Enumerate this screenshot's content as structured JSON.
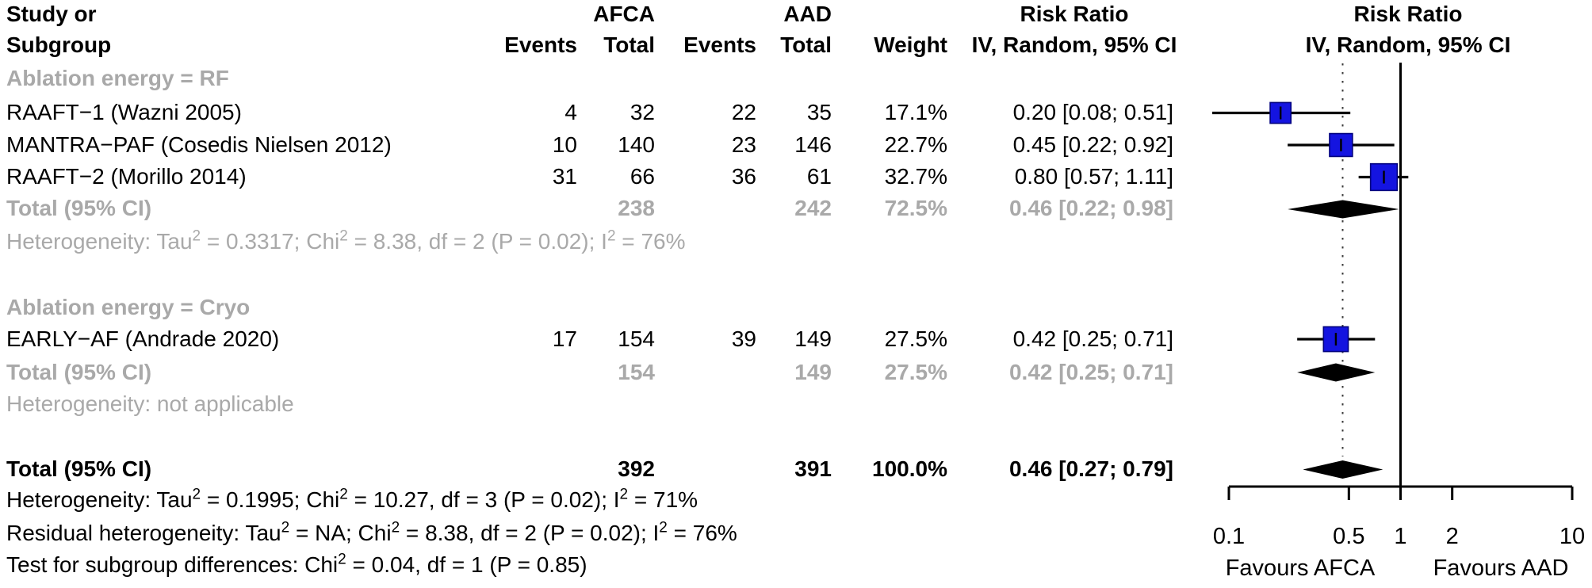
{
  "header": {
    "study_line1": "Study or",
    "study_line2": "Subgroup",
    "group1": "AFCA",
    "group2": "AAD",
    "events1": "Events",
    "total1": "Total",
    "events2": "Events",
    "total2": "Total",
    "weight": "Weight",
    "rr_col_line1": "Risk Ratio",
    "rr_col_line2": "IV, Random, 95% CI",
    "plot_col_line1": "Risk Ratio",
    "plot_col_line2": "IV, Random, 95% CI"
  },
  "sections": {
    "rf_label": "Ablation energy = RF",
    "cryo_label": "Ablation energy = Cryo"
  },
  "rows": {
    "raaft1": {
      "label": "RAAFT−1 (Wazni 2005)",
      "e1": "4",
      "t1": "32",
      "e2": "22",
      "t2": "35",
      "weight": "17.1%",
      "rr": "0.20 [0.08; 0.51]"
    },
    "mantra": {
      "label": "MANTRA−PAF (Cosedis Nielsen 2012)",
      "e1": "10",
      "t1": "140",
      "e2": "23",
      "t2": "146",
      "weight": "22.7%",
      "rr": "0.45 [0.22; 0.92]"
    },
    "raaft2": {
      "label": "RAAFT−2 (Morillo 2014)",
      "e1": "31",
      "t1": "66",
      "e2": "36",
      "t2": "61",
      "weight": "32.7%",
      "rr": "0.80 [0.57; 1.11]"
    },
    "rf_total": {
      "label": "Total (95% CI)",
      "t1": "238",
      "t2": "242",
      "weight": "72.5%",
      "rr": "0.46 [0.22; 0.98]"
    },
    "rf_het": "Heterogeneity: Tau^2 = 0.3317; Chi^2 = 8.38, df = 2 (P = 0.02); I^2 = 76%",
    "early": {
      "label": "EARLY−AF (Andrade 2020)",
      "e1": "17",
      "t1": "154",
      "e2": "39",
      "t2": "149",
      "weight": "27.5%",
      "rr": "0.42 [0.25; 0.71]"
    },
    "cryo_total": {
      "label": "Total (95% CI)",
      "t1": "154",
      "t2": "149",
      "weight": "27.5%",
      "rr": "0.42 [0.25; 0.71]"
    },
    "cryo_het": "Heterogeneity: not applicable",
    "overall_total": {
      "label": "Total (95% CI)",
      "t1": "392",
      "t2": "391",
      "weight": "100.0%",
      "rr": "0.46 [0.27; 0.79]"
    },
    "overall_het": "Heterogeneity: Tau^2 = 0.1995; Chi^2 = 10.27, df = 3 (P = 0.02); I^2 = 71%",
    "residual_het": "Residual heterogeneity: Tau^2 = NA; Chi^2 = 8.38, df = 2 (P = 0.02); I^2 = 76%",
    "subgroup_test": "Test for subgroup differences: Chi^2 = 0.04, df = 1 (P = 0.85)"
  },
  "chart_data": {
    "type": "scatter",
    "variant": "forest-plot",
    "effect_measure": "Risk Ratio",
    "model": "IV, Random, 95% CI",
    "x_scale": "log10",
    "x_range": [
      0.1,
      10
    ],
    "x_ticks": [
      0.1,
      0.5,
      1,
      2,
      10
    ],
    "ref_line": 1,
    "summary_line": 0.46,
    "xlabel_left": "Favours AFCA",
    "xlabel_right": "Favours AAD",
    "studies": [
      {
        "id": "raaft1",
        "label": "RAAFT−1 (Wazni 2005)",
        "rr": 0.2,
        "ci_low": 0.08,
        "ci_high": 0.51,
        "weight_pct": 17.1
      },
      {
        "id": "mantra",
        "label": "MANTRA−PAF (Cosedis Nielsen 2012)",
        "rr": 0.45,
        "ci_low": 0.22,
        "ci_high": 0.92,
        "weight_pct": 22.7
      },
      {
        "id": "raaft2",
        "label": "RAAFT−2 (Morillo 2014)",
        "rr": 0.8,
        "ci_low": 0.57,
        "ci_high": 1.11,
        "weight_pct": 32.7
      },
      {
        "id": "early",
        "label": "EARLY−AF (Andrade 2020)",
        "rr": 0.42,
        "ci_low": 0.25,
        "ci_high": 0.71,
        "weight_pct": 27.5
      }
    ],
    "summaries": [
      {
        "id": "rf_total",
        "label": "Ablation energy = RF — Total (95% CI)",
        "rr": 0.46,
        "ci_low": 0.22,
        "ci_high": 0.98
      },
      {
        "id": "cryo_total",
        "label": "Ablation energy = Cryo — Total (95% CI)",
        "rr": 0.42,
        "ci_low": 0.25,
        "ci_high": 0.71
      },
      {
        "id": "overall",
        "label": "Total (95% CI)",
        "rr": 0.46,
        "ci_low": 0.27,
        "ci_high": 0.79
      }
    ],
    "colors": {
      "square": "#1414e0",
      "square_border": "#00007d",
      "diamond": "#000000",
      "line": "#000000",
      "dotted_line": "#3a3a3a",
      "gray_text": "#a9a9a9"
    }
  }
}
